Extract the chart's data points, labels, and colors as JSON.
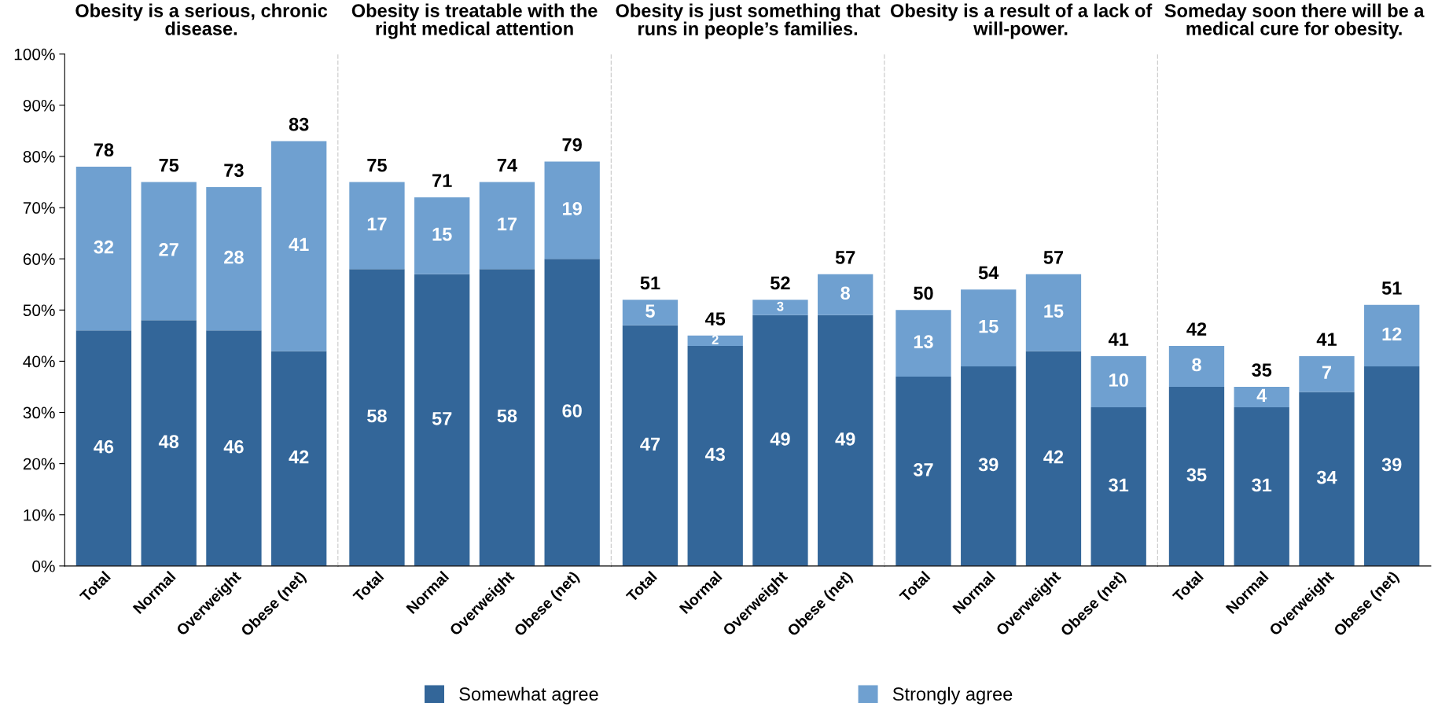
{
  "chart_data": [
    {
      "type": "bar",
      "stacked": true,
      "title": "Obesity is a serious, chronic disease.",
      "categories": [
        "Total",
        "Normal",
        "Overweight",
        "Obese (net)"
      ],
      "ylim": [
        0,
        100
      ],
      "yticks": [
        {
          "value": 0,
          "label": "0%"
        },
        {
          "value": 10,
          "label": "10%"
        },
        {
          "value": 20,
          "label": "20%"
        },
        {
          "value": 30,
          "label": "30%"
        },
        {
          "value": 40,
          "label": "40%"
        },
        {
          "value": 50,
          "label": "50%"
        },
        {
          "value": 60,
          "label": "60%"
        },
        {
          "value": 70,
          "label": "70%"
        },
        {
          "value": 80,
          "label": "80%"
        },
        {
          "value": 90,
          "label": "90%"
        },
        {
          "value": 100,
          "label": "100%"
        }
      ],
      "data_labels": true,
      "totals": [
        "78",
        "75",
        "73",
        "83"
      ],
      "legend": "bottom",
      "grid": false,
      "series": [
        {
          "name": "Somewhat agree",
          "color": "#336699",
          "values": [
            46,
            48,
            46,
            42
          ]
        },
        {
          "name": "Strongly agree",
          "color": "#6fa0d0",
          "values": [
            32,
            27,
            28,
            41
          ]
        }
      ]
    },
    {
      "type": "bar",
      "stacked": true,
      "title": "Obesity is treatable with the right medical attention",
      "categories": [
        "Total",
        "Normal",
        "Overweight",
        "Obese (net)"
      ],
      "ylim": [
        0,
        100
      ],
      "tick_labels": "x",
      "data_labels": true,
      "totals": [
        "75",
        "71",
        "74",
        "79"
      ],
      "grid": false,
      "series": [
        {
          "color": "#336699",
          "values": [
            58,
            57,
            58,
            60
          ]
        },
        {
          "color": "#6fa0d0",
          "values": [
            17,
            15,
            17,
            19
          ]
        }
      ]
    },
    {
      "type": "bar",
      "stacked": true,
      "title": "Obesity is just something that runs in people’s families.",
      "categories": [
        "Total",
        "Normal",
        "Overweight",
        "Obese (net)"
      ],
      "ylim": [
        0,
        100
      ],
      "tick_labels": "x",
      "data_labels": true,
      "totals": [
        "51",
        "45",
        "52",
        "57"
      ],
      "grid": false,
      "series": [
        {
          "color": "#336699",
          "values": [
            47,
            43,
            49,
            49
          ]
        },
        {
          "color": "#6fa0d0",
          "values": [
            5,
            2,
            3,
            8
          ]
        }
      ]
    },
    {
      "type": "bar",
      "stacked": true,
      "title": "Obesity is a result of a lack of will-power.",
      "categories": [
        "Total",
        "Normal",
        "Overweight",
        "Obese (net)"
      ],
      "ylim": [
        0,
        100
      ],
      "tick_labels": "x",
      "data_labels": true,
      "totals": [
        "50",
        "54",
        "57",
        "41"
      ],
      "grid": false,
      "series": [
        {
          "color": "#336699",
          "values": [
            37,
            39,
            42,
            31
          ]
        },
        {
          "color": "#6fa0d0",
          "values": [
            13,
            15,
            15,
            10
          ]
        }
      ]
    },
    {
      "type": "bar",
      "stacked": true,
      "title": "Someday soon there will be a medical cure for obesity.",
      "categories": [
        "Total",
        "Normal",
        "Overweight",
        "Obese (net)"
      ],
      "ylim": [
        0,
        100
      ],
      "tick_labels": "x",
      "data_labels": true,
      "totals": [
        "42",
        "35",
        "41",
        "51"
      ],
      "grid": false,
      "series": [
        {
          "color": "#336699",
          "values": [
            35,
            31,
            34,
            39
          ]
        },
        {
          "color": "#6fa0d0",
          "values": [
            8,
            4,
            7,
            12
          ]
        }
      ]
    }
  ]
}
